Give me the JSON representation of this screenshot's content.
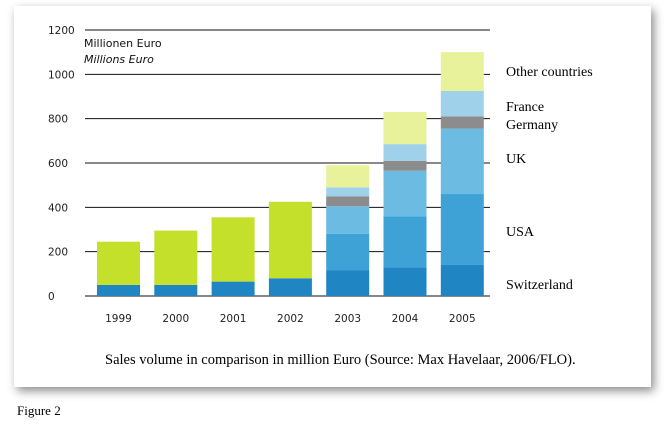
{
  "chart_data": {
    "type": "bar",
    "stacked": true,
    "categories": [
      "1999",
      "2000",
      "2001",
      "2002",
      "2003",
      "2004",
      "2005"
    ],
    "y_unit_de": "Millionen Euro",
    "y_unit_en": "Millions Euro",
    "ylim": [
      0,
      1200
    ],
    "yticks": [
      0,
      200,
      400,
      600,
      800,
      1000,
      1200
    ],
    "grid": true,
    "series": [
      {
        "name": "Switzerland",
        "color": "#1f86c3",
        "values": [
          50,
          50,
          65,
          80,
          115,
          130,
          140
        ]
      },
      {
        "name": "USA",
        "color": "#3fa2d6",
        "values": [
          0,
          0,
          0,
          0,
          165,
          230,
          320
        ]
      },
      {
        "name": "UK",
        "color": "#6bbbe3",
        "values": [
          0,
          0,
          0,
          0,
          125,
          205,
          295
        ]
      },
      {
        "name": "Germany",
        "color": "#8c8c8c",
        "values": [
          0,
          0,
          0,
          0,
          45,
          45,
          55
        ]
      },
      {
        "name": "France",
        "color": "#9fd2ea",
        "values": [
          0,
          0,
          0,
          0,
          40,
          75,
          115
        ]
      },
      {
        "name": "Other countries",
        "color": "#e7f29a",
        "values": [
          0,
          0,
          0,
          0,
          100,
          145,
          175
        ]
      },
      {
        "name": "",
        "color": "#c5e02a",
        "values": [
          195,
          245,
          290,
          345,
          0,
          0,
          0
        ]
      }
    ],
    "legend_placement": "right"
  },
  "caption": "Sales volume in comparison in million Euro (Source: Max Havelaar, 2006/FLO).",
  "figure_label": "Figure 2"
}
